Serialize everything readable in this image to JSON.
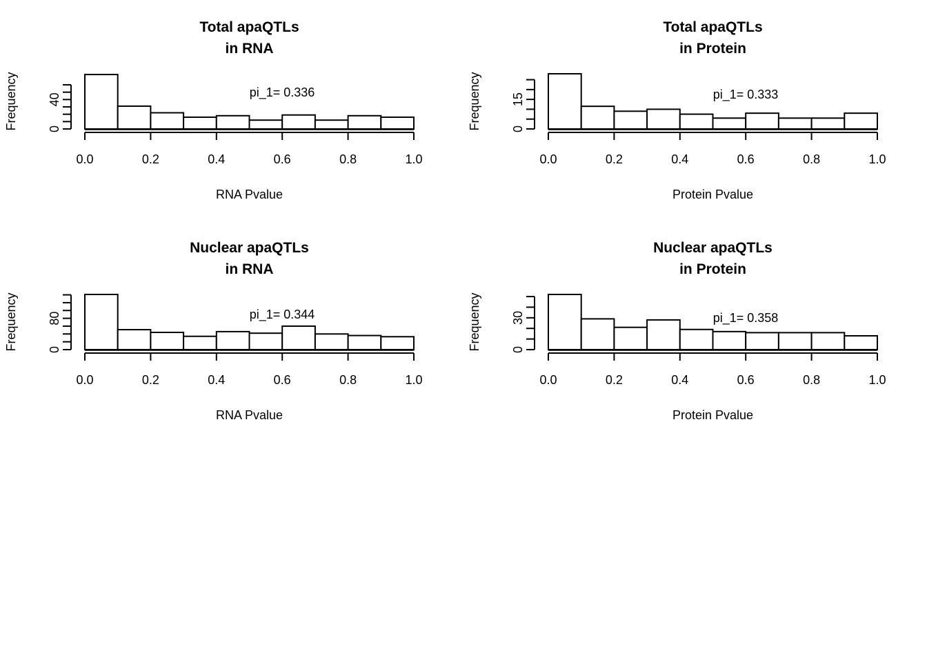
{
  "chart_data": [
    {
      "type": "bar",
      "title_lines": [
        "Total apaQTLs",
        "in RNA"
      ],
      "xlabel": "RNA Pvalue",
      "ylabel": "Frequency",
      "bin_edges": [
        0.0,
        0.1,
        0.2,
        0.3,
        0.4,
        0.5,
        0.6,
        0.7,
        0.8,
        0.9,
        1.0
      ],
      "values": [
        74,
        31,
        22,
        16,
        18,
        12,
        19,
        12,
        18,
        16
      ],
      "xlim": [
        0.0,
        1.0
      ],
      "ylim": [
        0,
        75
      ],
      "x_ticks": [
        "0.0",
        "0.2",
        "0.4",
        "0.6",
        "0.8",
        "1.0"
      ],
      "y_ticks": [
        0,
        10,
        20,
        30,
        40,
        50,
        60
      ],
      "y_tick_labels": [
        "0",
        "40"
      ],
      "annotation": "pi_1= 0.336"
    },
    {
      "type": "bar",
      "title_lines": [
        "Total apaQTLs",
        "in Protein"
      ],
      "xlabel": "Protein Pvalue",
      "ylabel": "Frequency",
      "bin_edges": [
        0.0,
        0.1,
        0.2,
        0.3,
        0.4,
        0.5,
        0.6,
        0.7,
        0.8,
        0.9,
        1.0
      ],
      "values": [
        28,
        11.5,
        9,
        10,
        7.5,
        5.5,
        8,
        5.5,
        5.5,
        8
      ],
      "xlim": [
        0.0,
        1.0
      ],
      "ylim": [
        0,
        28
      ],
      "x_ticks": [
        "0.0",
        "0.2",
        "0.4",
        "0.6",
        "0.8",
        "1.0"
      ],
      "y_ticks": [
        0,
        5,
        10,
        15,
        20,
        25
      ],
      "y_tick_labels": [
        "0",
        "15"
      ],
      "annotation": "pi_1= 0.333"
    },
    {
      "type": "bar",
      "title_lines": [
        "Nuclear apaQTLs",
        "in RNA"
      ],
      "xlabel": "RNA Pvalue",
      "ylabel": "Frequency",
      "bin_edges": [
        0.0,
        0.1,
        0.2,
        0.3,
        0.4,
        0.5,
        0.6,
        0.7,
        0.8,
        0.9,
        1.0
      ],
      "values": [
        141,
        51,
        44,
        34,
        46,
        42,
        60,
        40,
        36,
        33
      ],
      "xlim": [
        0.0,
        1.0
      ],
      "ylim": [
        0,
        141
      ],
      "x_ticks": [
        "0.0",
        "0.2",
        "0.4",
        "0.6",
        "0.8",
        "1.0"
      ],
      "y_ticks": [
        0,
        20,
        40,
        60,
        80,
        100,
        120,
        140
      ],
      "y_tick_labels": [
        "0",
        "80"
      ],
      "annotation": "pi_1= 0.344"
    },
    {
      "type": "bar",
      "title_lines": [
        "Nuclear apaQTLs",
        "in Protein"
      ],
      "xlabel": "Protein Pvalue",
      "ylabel": "Frequency",
      "bin_edges": [
        0.0,
        0.1,
        0.2,
        0.3,
        0.4,
        0.5,
        0.6,
        0.7,
        0.8,
        0.9,
        1.0
      ],
      "values": [
        52,
        29,
        21,
        28,
        19,
        17,
        16,
        16,
        16,
        13
      ],
      "xlim": [
        0.0,
        1.0
      ],
      "ylim": [
        0,
        52
      ],
      "x_ticks": [
        "0.0",
        "0.2",
        "0.4",
        "0.6",
        "0.8",
        "1.0"
      ],
      "y_ticks": [
        0,
        10,
        20,
        30,
        40,
        50
      ],
      "y_tick_labels": [
        "0",
        "30"
      ],
      "annotation": "pi_1= 0.358"
    }
  ]
}
